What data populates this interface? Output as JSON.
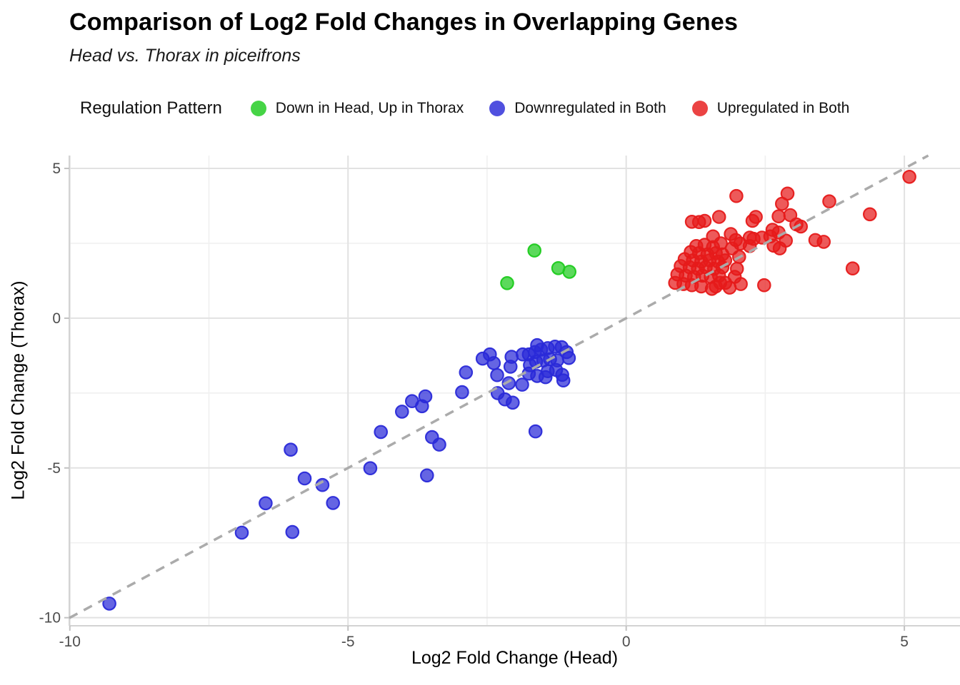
{
  "title": "Comparison of Log2 Fold Changes in Overlapping Genes",
  "subtitle": "Head vs. Thorax in piceifrons",
  "legend": {
    "title": "Regulation Pattern",
    "items": [
      {
        "label": "Down in Head, Up in Thorax",
        "color_key": "green"
      },
      {
        "label": "Downregulated in Both",
        "color_key": "blue"
      },
      {
        "label": "Upregulated in Both",
        "color_key": "red"
      }
    ]
  },
  "colors": {
    "green": "#1DCB1D",
    "blue": "#2A2AD8",
    "red": "#E61A1A",
    "dashed_line": "#ABABAB",
    "grid_major": "#E2E2E2",
    "grid_minor": "#F0F0F0",
    "axis_line": "#D3D3D3",
    "tick_mark": "#C2C2C2",
    "tick_label": "#4D4D4D"
  },
  "chart_data": {
    "type": "scatter",
    "title": "Comparison of Log2 Fold Changes in Overlapping Genes",
    "subtitle": "Head vs. Thorax in piceifrons",
    "xlabel": "Log2 Fold Change (Head)",
    "ylabel": "Log2 Fold Change (Thorax)",
    "xlim": [
      -10.01,
      6.0
    ],
    "ylim": [
      -10.27,
      5.43
    ],
    "x_ticks": [
      -10,
      -5,
      0,
      5
    ],
    "y_ticks": [
      -10,
      -5,
      0,
      5
    ],
    "x_minor_ticks": [
      -7.5,
      -2.5,
      2.5
    ],
    "y_minor_ticks": [
      -7.5,
      -2.5,
      2.5
    ],
    "grid": true,
    "identity_line": {
      "slope": 1,
      "intercept": 0,
      "style": "dashed"
    },
    "legend_position": "top",
    "series": [
      {
        "name": "Down in Head, Up in Thorax",
        "color_key": "green",
        "points": [
          [
            -2.14,
            1.17
          ],
          [
            -1.65,
            2.26
          ],
          [
            -1.22,
            1.67
          ],
          [
            -1.02,
            1.55
          ]
        ]
      },
      {
        "name": "Downregulated in Both",
        "color_key": "blue",
        "points": [
          [
            -9.29,
            -9.53
          ],
          [
            -6.91,
            -7.16
          ],
          [
            -6.0,
            -7.14
          ],
          [
            -6.48,
            -6.18
          ],
          [
            -5.27,
            -6.17
          ],
          [
            -5.78,
            -5.35
          ],
          [
            -5.46,
            -5.57
          ],
          [
            -6.03,
            -4.39
          ],
          [
            -4.6,
            -5.01
          ],
          [
            -3.58,
            -5.25
          ],
          [
            -4.41,
            -3.8
          ],
          [
            -4.03,
            -3.12
          ],
          [
            -3.85,
            -2.77
          ],
          [
            -3.67,
            -2.94
          ],
          [
            -3.61,
            -2.61
          ],
          [
            -3.49,
            -3.97
          ],
          [
            -3.36,
            -4.22
          ],
          [
            -2.95,
            -2.47
          ],
          [
            -2.88,
            -1.81
          ],
          [
            -1.63,
            -3.78
          ],
          [
            -2.58,
            -1.35
          ],
          [
            -2.45,
            -1.21
          ],
          [
            -2.38,
            -1.5
          ],
          [
            -2.32,
            -1.9
          ],
          [
            -2.31,
            -2.5
          ],
          [
            -2.18,
            -2.71
          ],
          [
            -2.04,
            -2.82
          ],
          [
            -2.11,
            -2.17
          ],
          [
            -2.08,
            -1.62
          ],
          [
            -2.06,
            -1.29
          ],
          [
            -1.87,
            -2.22
          ],
          [
            -1.86,
            -1.21
          ],
          [
            -1.75,
            -1.85
          ],
          [
            -1.75,
            -1.21
          ],
          [
            -1.73,
            -1.57
          ],
          [
            -1.64,
            -1.13
          ],
          [
            -1.62,
            -1.45
          ],
          [
            -1.6,
            -0.9
          ],
          [
            -1.6,
            -1.93
          ],
          [
            -1.53,
            -1.05
          ],
          [
            -1.49,
            -1.41
          ],
          [
            -1.45,
            -1.97
          ],
          [
            -1.41,
            -1.0
          ],
          [
            -1.41,
            -1.77
          ],
          [
            -1.37,
            -1.37
          ],
          [
            -1.28,
            -0.95
          ],
          [
            -1.26,
            -1.73
          ],
          [
            -1.24,
            -1.41
          ],
          [
            -1.16,
            -0.97
          ],
          [
            -1.15,
            -1.89
          ],
          [
            -1.13,
            -2.08
          ],
          [
            -1.07,
            -1.13
          ],
          [
            -1.03,
            -1.33
          ]
        ]
      },
      {
        "name": "Upregulated in Both",
        "color_key": "red",
        "points": [
          [
            5.09,
            4.72
          ],
          [
            1.98,
            4.08
          ],
          [
            2.9,
            4.16
          ],
          [
            2.8,
            3.82
          ],
          [
            3.65,
            3.9
          ],
          [
            4.38,
            3.47
          ],
          [
            2.74,
            3.4
          ],
          [
            2.95,
            3.44
          ],
          [
            3.06,
            3.13
          ],
          [
            3.14,
            3.06
          ],
          [
            1.18,
            3.22
          ],
          [
            1.31,
            3.21
          ],
          [
            1.41,
            3.25
          ],
          [
            1.67,
            3.38
          ],
          [
            2.33,
            3.38
          ],
          [
            2.27,
            3.25
          ],
          [
            2.03,
            2.05
          ],
          [
            1.56,
            2.73
          ],
          [
            1.88,
            2.81
          ],
          [
            1.97,
            2.61
          ],
          [
            2.05,
            2.49
          ],
          [
            2.29,
            2.65
          ],
          [
            2.44,
            2.69
          ],
          [
            2.59,
            2.73
          ],
          [
            2.63,
            2.95
          ],
          [
            2.74,
            2.86
          ],
          [
            2.87,
            2.59
          ],
          [
            2.76,
            2.33
          ],
          [
            2.65,
            2.42
          ],
          [
            2.22,
            2.69
          ],
          [
            2.22,
            2.41
          ],
          [
            1.9,
            2.33
          ],
          [
            3.4,
            2.61
          ],
          [
            3.55,
            2.55
          ],
          [
            4.07,
            1.66
          ],
          [
            2.48,
            1.1
          ],
          [
            1.26,
            2.41
          ],
          [
            1.41,
            2.45
          ],
          [
            1.56,
            2.37
          ],
          [
            1.7,
            2.5
          ],
          [
            1.16,
            2.21
          ],
          [
            1.31,
            2.17
          ],
          [
            1.46,
            2.13
          ],
          [
            1.61,
            2.17
          ],
          [
            1.73,
            2.13
          ],
          [
            1.05,
            1.97
          ],
          [
            1.2,
            1.93
          ],
          [
            1.35,
            1.89
          ],
          [
            1.5,
            1.93
          ],
          [
            1.65,
            1.89
          ],
          [
            1.78,
            1.93
          ],
          [
            0.98,
            1.74
          ],
          [
            1.14,
            1.7
          ],
          [
            1.29,
            1.65
          ],
          [
            1.43,
            1.7
          ],
          [
            1.58,
            1.65
          ],
          [
            1.73,
            1.7
          ],
          [
            0.92,
            1.46
          ],
          [
            1.07,
            1.42
          ],
          [
            1.22,
            1.38
          ],
          [
            1.37,
            1.42
          ],
          [
            1.52,
            1.38
          ],
          [
            1.67,
            1.42
          ],
          [
            0.88,
            1.18
          ],
          [
            1.03,
            1.14
          ],
          [
            1.18,
            1.1
          ],
          [
            1.35,
            1.06
          ],
          [
            1.61,
            1.06
          ],
          [
            1.78,
            1.18
          ],
          [
            1.95,
            1.38
          ],
          [
            1.99,
            1.65
          ],
          [
            2.06,
            1.14
          ],
          [
            1.86,
            1.02
          ],
          [
            1.54,
            0.98
          ],
          [
            1.69,
            1.18
          ]
        ]
      }
    ]
  }
}
